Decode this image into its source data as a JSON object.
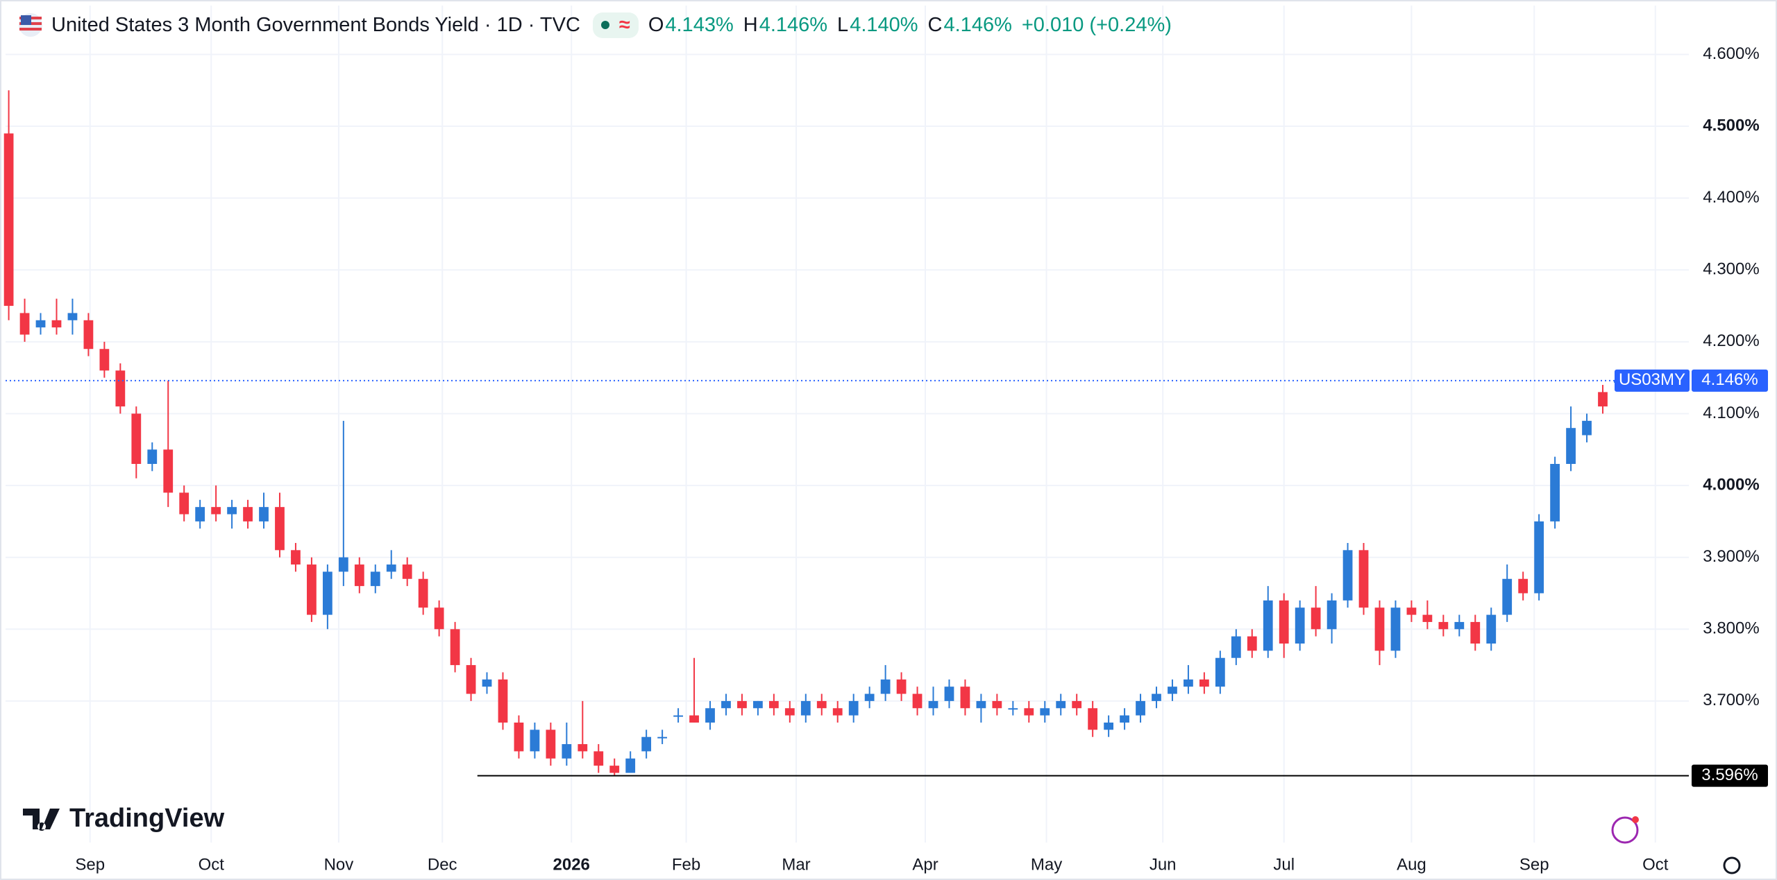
{
  "chart_data": {
    "type": "candlestick",
    "title": "United States 3 Month Government Bonds Yield · 1D · TVC",
    "header": {
      "open_label": "O",
      "open": "4.143%",
      "high_label": "H",
      "high": "4.146%",
      "low_label": "L",
      "low": "4.140%",
      "close_label": "C",
      "close": "4.146%",
      "change": "+0.010 (+0.24%)"
    },
    "up_color": "#2b7bd6",
    "down_color": "#f23645",
    "ohlc": [
      [
        4.49,
        4.55,
        4.23,
        4.25
      ],
      [
        4.24,
        4.26,
        4.2,
        4.21
      ],
      [
        4.22,
        4.24,
        4.21,
        4.23
      ],
      [
        4.23,
        4.26,
        4.21,
        4.22
      ],
      [
        4.23,
        4.26,
        4.21,
        4.24
      ],
      [
        4.23,
        4.24,
        4.18,
        4.19
      ],
      [
        4.19,
        4.2,
        4.15,
        4.16
      ],
      [
        4.16,
        4.17,
        4.1,
        4.11
      ],
      [
        4.1,
        4.11,
        4.01,
        4.03
      ],
      [
        4.03,
        4.06,
        4.02,
        4.05
      ],
      [
        4.05,
        4.146,
        3.97,
        3.99
      ],
      [
        3.99,
        4.0,
        3.95,
        3.96
      ],
      [
        3.95,
        3.98,
        3.94,
        3.97
      ],
      [
        3.97,
        4.0,
        3.95,
        3.96
      ],
      [
        3.96,
        3.98,
        3.94,
        3.97
      ],
      [
        3.97,
        3.98,
        3.94,
        3.95
      ],
      [
        3.95,
        3.99,
        3.94,
        3.97
      ],
      [
        3.97,
        3.99,
        3.9,
        3.91
      ],
      [
        3.91,
        3.92,
        3.88,
        3.89
      ],
      [
        3.89,
        3.9,
        3.81,
        3.82
      ],
      [
        3.82,
        3.89,
        3.8,
        3.88
      ],
      [
        3.88,
        4.09,
        3.86,
        3.9
      ],
      [
        3.89,
        3.9,
        3.85,
        3.86
      ],
      [
        3.86,
        3.89,
        3.85,
        3.88
      ],
      [
        3.88,
        3.91,
        3.87,
        3.89
      ],
      [
        3.89,
        3.9,
        3.86,
        3.87
      ],
      [
        3.87,
        3.88,
        3.82,
        3.83
      ],
      [
        3.83,
        3.84,
        3.79,
        3.8
      ],
      [
        3.8,
        3.81,
        3.74,
        3.75
      ],
      [
        3.75,
        3.76,
        3.7,
        3.71
      ],
      [
        3.72,
        3.74,
        3.71,
        3.73
      ],
      [
        3.73,
        3.74,
        3.66,
        3.67
      ],
      [
        3.67,
        3.68,
        3.62,
        3.63
      ],
      [
        3.63,
        3.67,
        3.62,
        3.66
      ],
      [
        3.66,
        3.67,
        3.61,
        3.62
      ],
      [
        3.62,
        3.67,
        3.61,
        3.64
      ],
      [
        3.64,
        3.7,
        3.62,
        3.63
      ],
      [
        3.63,
        3.64,
        3.6,
        3.61
      ],
      [
        3.61,
        3.62,
        3.596,
        3.6
      ],
      [
        3.6,
        3.63,
        3.6,
        3.62
      ],
      [
        3.63,
        3.66,
        3.62,
        3.65
      ],
      [
        3.65,
        3.66,
        3.64,
        3.65
      ],
      [
        3.68,
        3.69,
        3.67,
        3.68
      ],
      [
        3.68,
        3.76,
        3.67,
        3.67
      ],
      [
        3.67,
        3.7,
        3.66,
        3.69
      ],
      [
        3.69,
        3.71,
        3.68,
        3.7
      ],
      [
        3.7,
        3.71,
        3.68,
        3.69
      ],
      [
        3.69,
        3.7,
        3.68,
        3.7
      ],
      [
        3.7,
        3.71,
        3.68,
        3.69
      ],
      [
        3.69,
        3.7,
        3.67,
        3.68
      ],
      [
        3.68,
        3.71,
        3.67,
        3.7
      ],
      [
        3.7,
        3.71,
        3.68,
        3.69
      ],
      [
        3.69,
        3.7,
        3.67,
        3.68
      ],
      [
        3.68,
        3.71,
        3.67,
        3.7
      ],
      [
        3.7,
        3.72,
        3.69,
        3.71
      ],
      [
        3.71,
        3.75,
        3.7,
        3.73
      ],
      [
        3.73,
        3.74,
        3.7,
        3.71
      ],
      [
        3.71,
        3.72,
        3.68,
        3.69
      ],
      [
        3.69,
        3.72,
        3.68,
        3.7
      ],
      [
        3.7,
        3.73,
        3.69,
        3.72
      ],
      [
        3.72,
        3.73,
        3.68,
        3.69
      ],
      [
        3.69,
        3.71,
        3.67,
        3.7
      ],
      [
        3.7,
        3.71,
        3.68,
        3.69
      ],
      [
        3.69,
        3.7,
        3.68,
        3.69
      ],
      [
        3.69,
        3.7,
        3.67,
        3.68
      ],
      [
        3.68,
        3.7,
        3.67,
        3.69
      ],
      [
        3.69,
        3.71,
        3.68,
        3.7
      ],
      [
        3.7,
        3.71,
        3.68,
        3.69
      ],
      [
        3.69,
        3.7,
        3.65,
        3.66
      ],
      [
        3.66,
        3.68,
        3.65,
        3.67
      ],
      [
        3.67,
        3.69,
        3.66,
        3.68
      ],
      [
        3.68,
        3.71,
        3.67,
        3.7
      ],
      [
        3.7,
        3.72,
        3.69,
        3.71
      ],
      [
        3.71,
        3.73,
        3.7,
        3.72
      ],
      [
        3.72,
        3.75,
        3.71,
        3.73
      ],
      [
        3.73,
        3.74,
        3.71,
        3.72
      ],
      [
        3.72,
        3.77,
        3.71,
        3.76
      ],
      [
        3.76,
        3.8,
        3.75,
        3.79
      ],
      [
        3.79,
        3.8,
        3.76,
        3.77
      ],
      [
        3.77,
        3.86,
        3.76,
        3.84
      ],
      [
        3.84,
        3.85,
        3.76,
        3.78
      ],
      [
        3.78,
        3.84,
        3.77,
        3.83
      ],
      [
        3.83,
        3.86,
        3.79,
        3.8
      ],
      [
        3.8,
        3.85,
        3.78,
        3.84
      ],
      [
        3.84,
        3.92,
        3.83,
        3.91
      ],
      [
        3.91,
        3.92,
        3.82,
        3.83
      ],
      [
        3.83,
        3.84,
        3.75,
        3.77
      ],
      [
        3.77,
        3.84,
        3.76,
        3.83
      ],
      [
        3.83,
        3.84,
        3.81,
        3.82
      ],
      [
        3.82,
        3.84,
        3.8,
        3.81
      ],
      [
        3.81,
        3.82,
        3.79,
        3.8
      ],
      [
        3.8,
        3.82,
        3.79,
        3.81
      ],
      [
        3.81,
        3.82,
        3.77,
        3.78
      ],
      [
        3.78,
        3.83,
        3.77,
        3.82
      ],
      [
        3.82,
        3.89,
        3.81,
        3.87
      ],
      [
        3.87,
        3.88,
        3.84,
        3.85
      ],
      [
        3.85,
        3.96,
        3.84,
        3.95
      ],
      [
        3.95,
        4.04,
        3.94,
        4.03
      ],
      [
        4.03,
        4.11,
        4.02,
        4.08
      ],
      [
        4.07,
        4.1,
        4.06,
        4.09
      ],
      [
        4.13,
        4.14,
        4.1,
        4.11
      ],
      [
        4.143,
        4.146,
        4.14,
        4.146
      ]
    ],
    "xlim": [
      -0.2,
      105.4
    ],
    "xticks": [
      {
        "value": 5.1,
        "label": "Sep"
      },
      {
        "value": 12.7,
        "label": "Oct"
      },
      {
        "value": 20.7,
        "label": "Nov"
      },
      {
        "value": 27.2,
        "label": "Dec"
      },
      {
        "value": 35.3,
        "label": "2026",
        "bold": true
      },
      {
        "value": 42.5,
        "label": "Feb"
      },
      {
        "value": 49.4,
        "label": "Mar"
      },
      {
        "value": 57.5,
        "label": "Apr"
      },
      {
        "value": 65.1,
        "label": "May"
      },
      {
        "value": 72.4,
        "label": "Jun"
      },
      {
        "value": 80.0,
        "label": "Jul"
      },
      {
        "value": 88.0,
        "label": "Aug"
      },
      {
        "value": 95.7,
        "label": "Sep"
      },
      {
        "value": 103.3,
        "label": "Oct"
      }
    ],
    "ylim": [
      3.503,
      4.668
    ],
    "yticks": [
      {
        "value": 3.7,
        "label": "3.700%"
      },
      {
        "value": 3.8,
        "label": "3.800%"
      },
      {
        "value": 3.9,
        "label": "3.900%"
      },
      {
        "value": 4.0,
        "label": "4.000%",
        "bold": true
      },
      {
        "value": 4.1,
        "label": "4.100%"
      },
      {
        "value": 4.2,
        "label": "4.200%"
      },
      {
        "value": 4.3,
        "label": "4.300%"
      },
      {
        "value": 4.4,
        "label": "4.400%"
      },
      {
        "value": 4.5,
        "label": "4.500%",
        "bold": true
      },
      {
        "value": 4.6,
        "label": "4.600%"
      }
    ],
    "grid": true,
    "price_line": {
      "symbol": "US03MY",
      "value": 4.146,
      "label": "4.146%",
      "color": "#2962ff"
    },
    "low_line": {
      "value": 3.596,
      "label": "3.596%"
    },
    "watermark": "TradingView"
  }
}
